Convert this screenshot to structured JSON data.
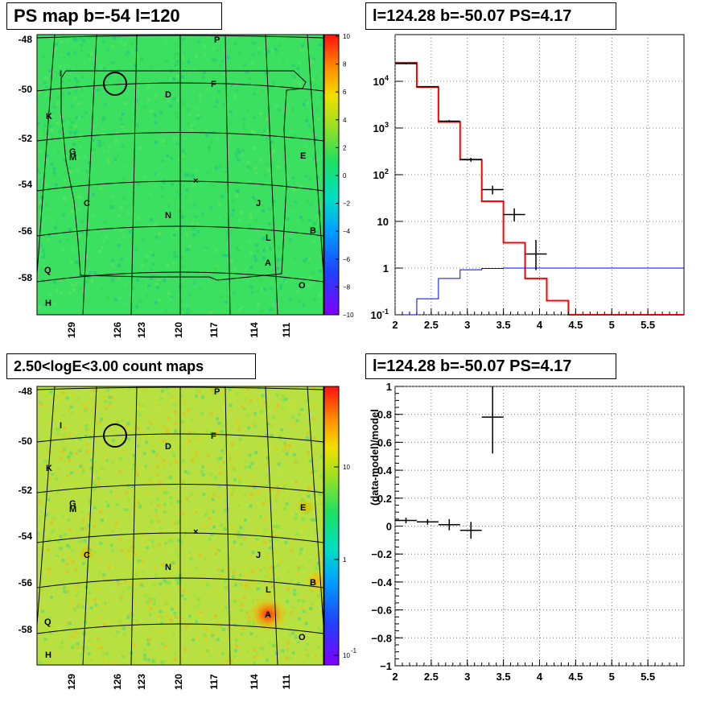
{
  "panels": {
    "top_left": {
      "title": "PS map b=-54 l=120",
      "lat_labels": [
        "-48",
        "-50",
        "-52",
        "-54",
        "-56",
        "-58"
      ],
      "lon_labels": [
        "129",
        "126",
        "123",
        "120",
        "117",
        "114",
        "111"
      ],
      "colorbar_labels": [
        "10",
        "8",
        "6",
        "4",
        "2",
        "0",
        "−2",
        "−4",
        "−6",
        "−8",
        "−10"
      ],
      "sources": [
        "P",
        "I",
        "F",
        "D",
        "K",
        "G",
        "M",
        "E",
        "C",
        "J",
        "N",
        "B",
        "L",
        "A",
        "Q",
        "O",
        "H"
      ],
      "marker_symbol": "×"
    },
    "top_right": {
      "title": "l=124.28 b=-50.07 PS=4.17"
    },
    "bottom_left": {
      "title": "2.50<logE<3.00 count maps",
      "lat_labels": [
        "-48",
        "-50",
        "-52",
        "-54",
        "-56",
        "-58"
      ],
      "lon_labels": [
        "129",
        "126",
        "123",
        "120",
        "117",
        "114",
        "111"
      ],
      "colorbar_labels": [
        "10",
        "1",
        "10"
      ],
      "colorbar_exp": "-1",
      "sources": [
        "P",
        "I",
        "F",
        "D",
        "K",
        "G",
        "M",
        "E",
        "C",
        "J",
        "N",
        "B",
        "L",
        "A",
        "Q",
        "O",
        "H"
      ],
      "marker_symbol": "×"
    },
    "bottom_right": {
      "title": "l=124.28 b=-50.07 PS=4.17"
    }
  },
  "chart_data": [
    {
      "type": "heatmap",
      "title": "PS map b=-54 l=120",
      "xlabel": "",
      "ylabel": "",
      "colorbar_range": [
        -10,
        10
      ],
      "lat_ticks": [
        -48,
        -50,
        -52,
        -54,
        -56,
        -58
      ],
      "lon_ticks": [
        129,
        126,
        123,
        120,
        117,
        114,
        111
      ]
    },
    {
      "type": "line",
      "title": "l=124.28 b=-50.07 PS=4.17",
      "xlim": [
        2,
        6
      ],
      "ylim": [
        0.1,
        100000
      ],
      "yscale": "log",
      "x_ticks": [
        "2",
        "2.5",
        "3",
        "3.5",
        "4",
        "4.5",
        "5",
        "5.5"
      ],
      "y_ticks": [
        "10^-1",
        "1",
        "10",
        "10^2",
        "10^3",
        "10^4"
      ],
      "grid": true,
      "series": [
        {
          "color": "#ff0000",
          "bin_edges": [
            2,
            2.3,
            2.6,
            2.9,
            3.2,
            3.5,
            3.8,
            4.1,
            4.4,
            6
          ],
          "values": [
            25000,
            7500,
            1350,
            210,
            27,
            3.5,
            0.6,
            0.2,
            0.1
          ]
        },
        {
          "color": "#0000ff",
          "bin_edges": [
            2,
            2.3,
            2.6,
            2.9,
            3.2,
            3.5,
            3.8,
            6
          ],
          "values": [
            0.1,
            0.22,
            0.6,
            0.92,
            0.98,
            1,
            1
          ]
        },
        {
          "color": "#000000",
          "kind": "errorbars",
          "points": [
            {
              "x": 2.15,
              "y": 24000,
              "xerr": 0.15,
              "ylo": 23000,
              "yhi": 25000
            },
            {
              "x": 2.45,
              "y": 7700,
              "xerr": 0.15,
              "ylo": 7500,
              "yhi": 7900
            },
            {
              "x": 2.75,
              "y": 1400,
              "xerr": 0.15,
              "ylo": 1320,
              "yhi": 1480
            },
            {
              "x": 3.05,
              "y": 210,
              "xerr": 0.15,
              "ylo": 190,
              "yhi": 230
            },
            {
              "x": 3.35,
              "y": 48,
              "xerr": 0.15,
              "ylo": 38,
              "yhi": 58
            },
            {
              "x": 3.65,
              "y": 14,
              "xerr": 0.15,
              "ylo": 10,
              "yhi": 19
            },
            {
              "x": 3.95,
              "y": 2,
              "xerr": 0.15,
              "ylo": 0.9,
              "yhi": 4
            }
          ]
        }
      ]
    },
    {
      "type": "heatmap",
      "title": "2.50<logE<3.00 count maps",
      "colorbar_scale": "log",
      "colorbar_range": [
        0.1,
        100
      ],
      "lat_ticks": [
        -48,
        -50,
        -52,
        -54,
        -56,
        -58
      ],
      "lon_ticks": [
        129,
        126,
        123,
        120,
        117,
        114,
        111
      ]
    },
    {
      "type": "scatter",
      "title": "l=124.28 b=-50.07 PS=4.17",
      "ylabel": "(data-model)/model",
      "xlim": [
        2,
        6
      ],
      "ylim": [
        -1,
        1
      ],
      "x_ticks": [
        "2",
        "2.5",
        "3",
        "3.5",
        "4",
        "4.5",
        "5",
        "5.5"
      ],
      "y_ticks": [
        "−1",
        "−0.8",
        "−0.6",
        "−0.4",
        "−0.2",
        "0",
        "0.2",
        "0.4",
        "0.6",
        "0.8",
        "1"
      ],
      "grid": true,
      "points": [
        {
          "x": 2.15,
          "y": 0.04,
          "xerr": 0.15,
          "ylo": 0.02,
          "yhi": 0.06
        },
        {
          "x": 2.45,
          "y": 0.03,
          "xerr": 0.15,
          "ylo": 0.01,
          "yhi": 0.05
        },
        {
          "x": 2.75,
          "y": 0.01,
          "xerr": 0.15,
          "ylo": -0.03,
          "yhi": 0.05
        },
        {
          "x": 3.05,
          "y": -0.03,
          "xerr": 0.15,
          "ylo": -0.09,
          "yhi": 0.03
        },
        {
          "x": 3.35,
          "y": 0.78,
          "xerr": 0.15,
          "ylo": 0.52,
          "yhi": 1.04
        }
      ]
    }
  ]
}
